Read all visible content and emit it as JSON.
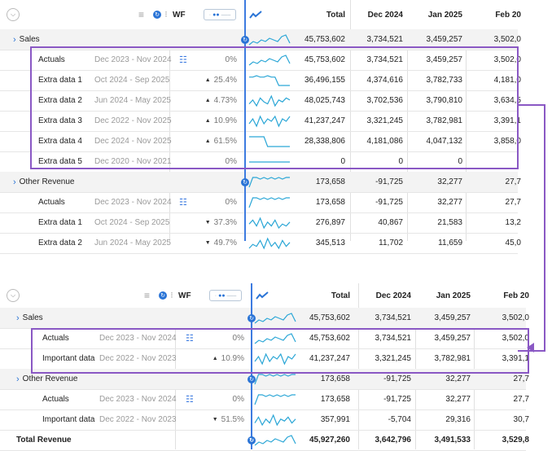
{
  "panels": [
    {
      "header": {
        "wf_label": "WF",
        "total": "Total",
        "col1": "Dec 2024",
        "col2": "Jan 2025",
        "col3": "Feb 20"
      },
      "rows": [
        {
          "type": "group",
          "label": "Sales",
          "period": "",
          "change": "",
          "dir": "",
          "total": "45,753,602",
          "c1": "3,734,521",
          "c2": "3,459,257",
          "c3": "3,502,0",
          "spark": [
            3,
            5,
            4,
            6,
            5,
            7,
            6,
            5,
            8,
            9,
            4
          ]
        },
        {
          "type": "child",
          "label": "Actuals",
          "period": "Dec 2023 - Nov 2024",
          "change": "0%",
          "dir": "",
          "filter": true,
          "total": "45,753,602",
          "c1": "3,734,521",
          "c2": "3,459,257",
          "c3": "3,502,0",
          "spark": [
            3,
            5,
            4,
            6,
            5,
            7,
            6,
            5,
            8,
            9,
            4
          ]
        },
        {
          "type": "child",
          "label": "Extra data 1",
          "period": "Oct 2024 - Sep 2025",
          "change": "25.4%",
          "dir": "up",
          "total": "36,496,155",
          "c1": "4,374,616",
          "c2": "3,782,733",
          "c3": "4,181,0",
          "spark": [
            8,
            8,
            9,
            8,
            8,
            9,
            8,
            8,
            2,
            2,
            2,
            2
          ]
        },
        {
          "type": "child",
          "label": "Extra data 2",
          "period": "Jun 2024 - May 2025",
          "change": "4.73%",
          "dir": "up",
          "total": "48,025,743",
          "c1": "3,702,536",
          "c2": "3,790,810",
          "c3": "3,634,5",
          "spark": [
            4,
            6,
            3,
            7,
            5,
            4,
            8,
            3,
            6,
            5,
            7,
            6
          ]
        },
        {
          "type": "child",
          "label": "Extra data 3",
          "period": "Dec 2022 - Nov 2025",
          "change": "10.9%",
          "dir": "up",
          "total": "41,237,247",
          "c1": "3,321,245",
          "c2": "3,782,981",
          "c3": "3,391,1",
          "spark": [
            4,
            6,
            3,
            7,
            4,
            6,
            5,
            7,
            3,
            6,
            5,
            7
          ]
        },
        {
          "type": "child",
          "label": "Extra data 4",
          "period": "Dec 2024 - Nov 2025",
          "change": "61.5%",
          "dir": "up",
          "total": "28,338,806",
          "c1": "4,181,086",
          "c2": "4,047,132",
          "c3": "3,858,0",
          "spark": [
            8,
            8,
            8,
            8,
            8,
            2,
            2,
            2,
            2,
            2,
            2,
            2
          ]
        },
        {
          "type": "child",
          "label": "Extra data 5",
          "period": "Dec 2020 - Nov 2021",
          "change": "0%",
          "dir": "",
          "total": "0",
          "c1": "0",
          "c2": "0",
          "c3": "",
          "spark": [
            5,
            5,
            5,
            5,
            5,
            5,
            5,
            5,
            5,
            5,
            5,
            5
          ]
        },
        {
          "type": "group",
          "label": "Other Revenue",
          "period": "",
          "change": "",
          "dir": "",
          "total": "173,658",
          "c1": "-91,725",
          "c2": "32,277",
          "c3": "27,7",
          "spark": [
            2,
            8,
            8,
            7,
            8,
            7,
            8,
            7,
            8,
            7,
            8,
            8
          ]
        },
        {
          "type": "child",
          "label": "Actuals",
          "period": "Dec 2023 - Nov 2024",
          "change": "0%",
          "dir": "",
          "filter": true,
          "total": "173,658",
          "c1": "-91,725",
          "c2": "32,277",
          "c3": "27,7",
          "spark": [
            2,
            8,
            8,
            7,
            8,
            7,
            8,
            7,
            8,
            7,
            8,
            8
          ]
        },
        {
          "type": "child",
          "label": "Extra data 1",
          "period": "Oct 2024 - Sep 2025",
          "change": "37.3%",
          "dir": "down",
          "total": "276,897",
          "c1": "40,867",
          "c2": "21,583",
          "c3": "13,2",
          "spark": [
            5,
            7,
            4,
            8,
            3,
            6,
            4,
            7,
            3,
            5,
            4,
            6
          ]
        },
        {
          "type": "child",
          "label": "Extra data 2",
          "period": "Jun 2024 - May 2025",
          "change": "49.7%",
          "dir": "down",
          "total": "345,513",
          "c1": "11,702",
          "c2": "11,659",
          "c3": "45,0",
          "spark": [
            3,
            5,
            4,
            7,
            3,
            8,
            4,
            6,
            3,
            7,
            4,
            6
          ]
        }
      ]
    },
    {
      "header": {
        "wf_label": "WF",
        "total": "Total",
        "col1": "Dec 2024",
        "col2": "Jan 2025",
        "col3": "Feb 20"
      },
      "rows": [
        {
          "type": "group",
          "label": "Sales",
          "period": "",
          "change": "",
          "dir": "",
          "total": "45,753,602",
          "c1": "3,734,521",
          "c2": "3,459,257",
          "c3": "3,502,0",
          "spark": [
            3,
            5,
            4,
            6,
            5,
            7,
            6,
            5,
            8,
            9,
            4
          ]
        },
        {
          "type": "child",
          "label": "Actuals",
          "period": "Dec 2023 - Nov 2024",
          "change": "0%",
          "dir": "",
          "filter": true,
          "total": "45,753,602",
          "c1": "3,734,521",
          "c2": "3,459,257",
          "c3": "3,502,0",
          "spark": [
            3,
            5,
            4,
            6,
            5,
            7,
            6,
            5,
            8,
            9,
            4
          ]
        },
        {
          "type": "child",
          "label": "Important data",
          "period": "Dec 2022 - Nov 2023",
          "change": "10.9%",
          "dir": "up",
          "total": "41,237,247",
          "c1": "3,321,245",
          "c2": "3,782,981",
          "c3": "3,391,1",
          "spark": [
            4,
            6,
            3,
            7,
            4,
            6,
            5,
            7,
            3,
            6,
            5,
            7
          ]
        },
        {
          "type": "group",
          "label": "Other Revenue",
          "period": "",
          "change": "",
          "dir": "",
          "total": "173,658",
          "c1": "-91,725",
          "c2": "32,277",
          "c3": "27,7",
          "spark": [
            2,
            8,
            8,
            7,
            8,
            7,
            8,
            7,
            8,
            7,
            8,
            8
          ]
        },
        {
          "type": "child",
          "label": "Actuals",
          "period": "Dec 2023 - Nov 2024",
          "change": "0%",
          "dir": "",
          "filter": true,
          "total": "173,658",
          "c1": "-91,725",
          "c2": "32,277",
          "c3": "27,7",
          "spark": [
            2,
            8,
            8,
            7,
            8,
            7,
            8,
            7,
            8,
            7,
            8,
            8
          ]
        },
        {
          "type": "child",
          "label": "Important data",
          "period": "Dec 2022 - Nov 2023",
          "change": "51.5%",
          "dir": "down",
          "total": "357,991",
          "c1": "-5,704",
          "c2": "29,316",
          "c3": "30,7",
          "spark": [
            4,
            7,
            3,
            6,
            4,
            8,
            3,
            6,
            5,
            7,
            4,
            6
          ]
        },
        {
          "type": "total",
          "label": "Total Revenue",
          "period": "",
          "change": "",
          "dir": "",
          "total": "45,927,260",
          "c1": "3,642,796",
          "c2": "3,491,533",
          "c3": "3,529,8",
          "spark": [
            3,
            5,
            4,
            6,
            5,
            7,
            6,
            5,
            8,
            9,
            4
          ]
        }
      ]
    }
  ],
  "icons": {
    "chevron": "chevron-right-icon",
    "filter": "sliders-icon",
    "sparkline": "trend-line-icon",
    "collapse": "chevron-down-icon"
  },
  "colors": {
    "accent": "#2a74d6",
    "highlight": "#8a58c4",
    "group_bg": "#f3f3f3",
    "muted": "#9a9a9a"
  }
}
